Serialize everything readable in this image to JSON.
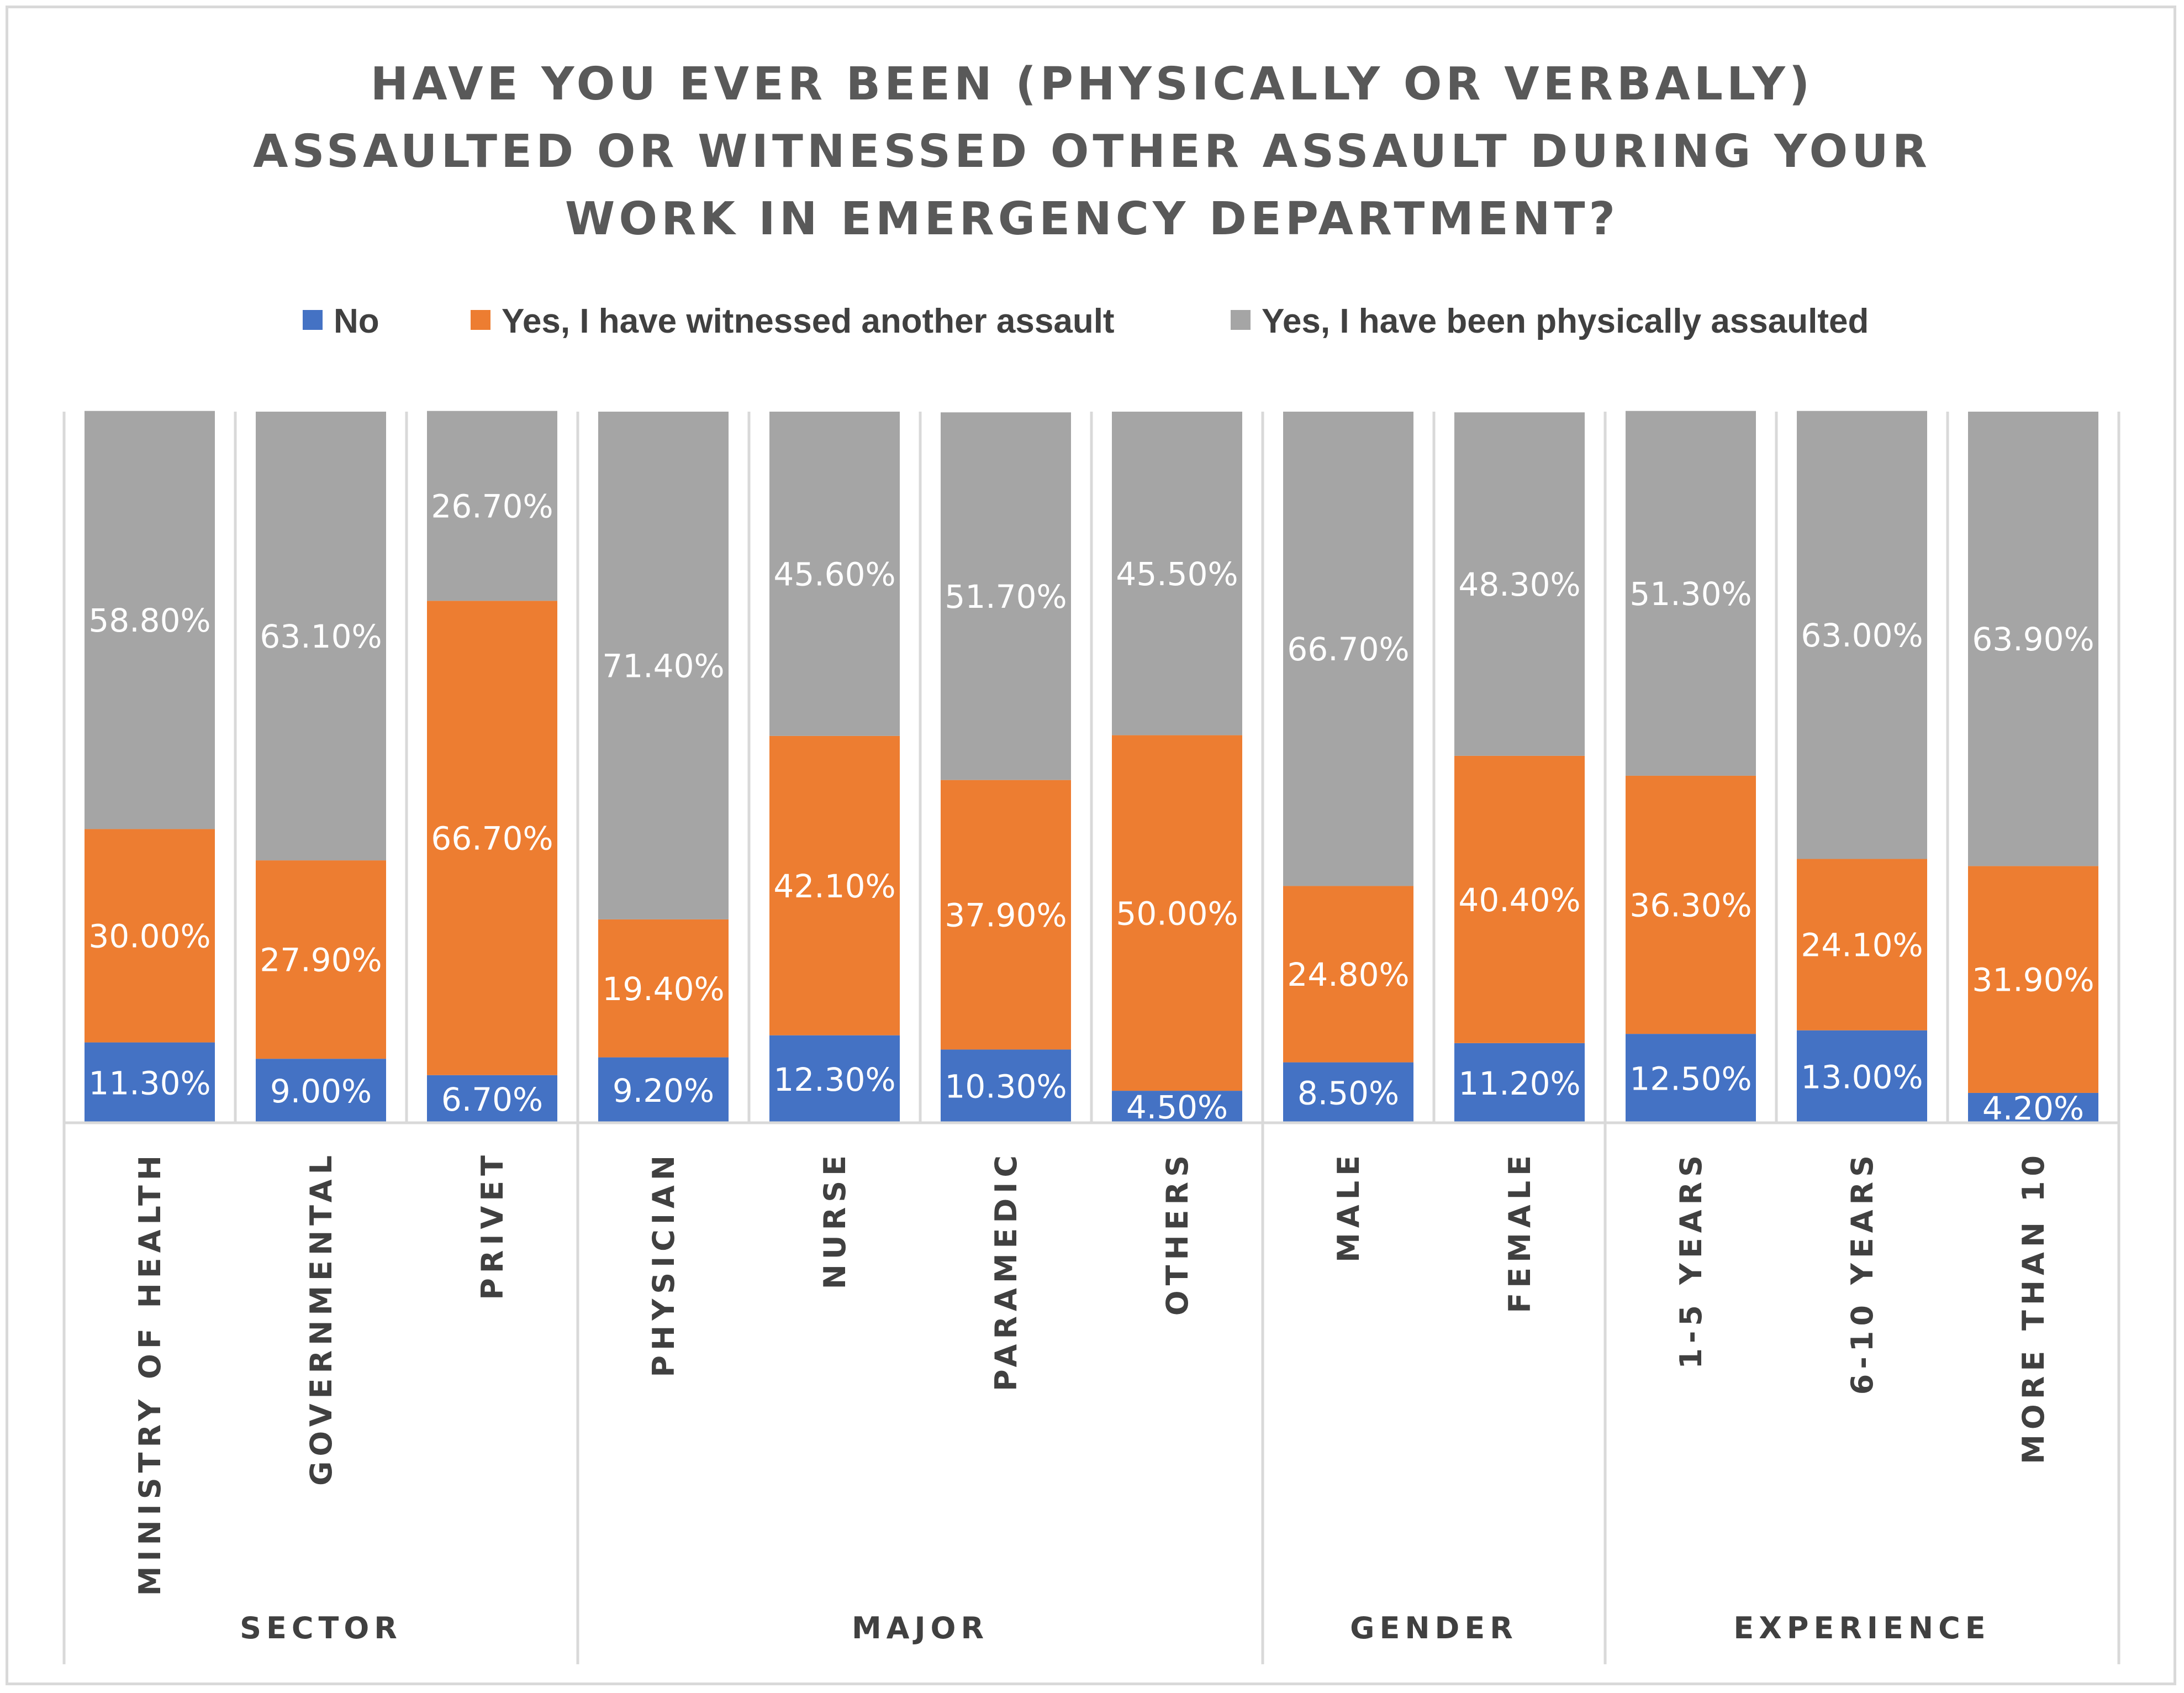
{
  "chart_data": {
    "type": "bar",
    "stacked": true,
    "title_lines": [
      "HAVE YOU EVER BEEN (PHYSICALLY OR VERBALLY)",
      "ASSAULTED OR WITNESSED OTHER ASSAULT DURING YOUR",
      "WORK IN EMERGENCY DEPARTMENT?"
    ],
    "legend_position": "top",
    "groups": [
      {
        "name": "SECTOR",
        "size": 3
      },
      {
        "name": "MAJOR",
        "size": 4
      },
      {
        "name": "GENDER",
        "size": 2
      },
      {
        "name": "EXPERIENCE",
        "size": 3
      }
    ],
    "categories": [
      "MINISTRY OF HEALTH",
      "GOVERNMENTAL",
      "PRIVET",
      "PHYSICIAN",
      "NURSE",
      "PARAMEDIC",
      "OTHERS",
      "MALE",
      "FEMALE",
      "1-5 YEARS",
      "6-10 YEARS",
      "MORE THAN 10"
    ],
    "series": [
      {
        "name": "No",
        "color": "#4472c4",
        "values": [
          11.3,
          9.0,
          6.7,
          9.2,
          12.3,
          10.3,
          4.5,
          8.5,
          11.2,
          12.5,
          13.0,
          4.2
        ],
        "labels": [
          "11.30%",
          "9.00%",
          "6.70%",
          "9.20%",
          "12.30%",
          "10.30%",
          "4.50%",
          "8.50%",
          "11.20%",
          "12.50%",
          "13.00%",
          "4.20%"
        ]
      },
      {
        "name": "Yes, I have witnessed another assault",
        "color": "#ed7d31",
        "values": [
          30.0,
          27.9,
          66.7,
          19.4,
          42.1,
          37.9,
          50.0,
          24.8,
          40.4,
          36.3,
          24.1,
          31.9
        ],
        "labels": [
          "30.00%",
          "27.90%",
          "66.70%",
          "19.40%",
          "42.10%",
          "37.90%",
          "50.00%",
          "24.80%",
          "40.40%",
          "36.30%",
          "24.10%",
          "31.90%"
        ]
      },
      {
        "name": "Yes, I have been physically assaulted",
        "color": "#a5a5a5",
        "values": [
          58.8,
          63.1,
          26.7,
          71.4,
          45.6,
          51.7,
          45.5,
          66.7,
          48.3,
          51.3,
          63.0,
          63.9
        ],
        "labels": [
          "58.80%",
          "63.10%",
          "26.70%",
          "71.40%",
          "45.60%",
          "51.70%",
          "45.50%",
          "66.70%",
          "48.30%",
          "51.30%",
          "63.00%",
          "63.90%"
        ]
      }
    ],
    "ylim": [
      0,
      100
    ],
    "grid": false
  }
}
